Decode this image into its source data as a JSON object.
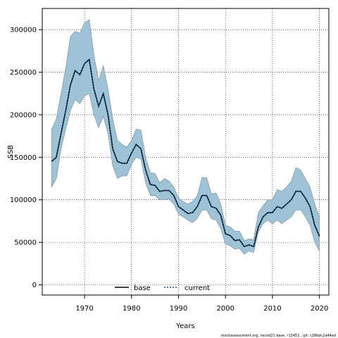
{
  "chart_data": {
    "type": "line",
    "xlabel": "Years",
    "ylabel": "SSB",
    "xlim": [
      1961,
      2022
    ],
    "ylim": [
      -12000,
      325000
    ],
    "x_ticks": [
      1970,
      1980,
      1990,
      2000,
      2010,
      2020
    ],
    "y_ticks": [
      0,
      50000,
      100000,
      150000,
      200000,
      250000,
      300000
    ],
    "grid": true,
    "legend_position": "bottom-center",
    "footer": "stockassessment.org, nscod21 base, r13452 , git: c28bdc2a44ad",
    "colors": {
      "band": "#9fc3d6",
      "band_edge": "#8a9aa5",
      "base": "#000000",
      "current": "#1a4f80"
    },
    "x": [
      1963,
      1964,
      1965,
      1966,
      1967,
      1968,
      1969,
      1970,
      1971,
      1972,
      1973,
      1974,
      1975,
      1976,
      1977,
      1978,
      1979,
      1980,
      1981,
      1982,
      1983,
      1984,
      1985,
      1986,
      1987,
      1988,
      1989,
      1990,
      1991,
      1992,
      1993,
      1994,
      1995,
      1996,
      1997,
      1998,
      1999,
      2000,
      2001,
      2002,
      2003,
      2004,
      2005,
      2006,
      2007,
      2008,
      2009,
      2010,
      2011,
      2012,
      2013,
      2014,
      2015,
      2016,
      2017,
      2018,
      2019,
      2020
    ],
    "series": [
      {
        "name": "base",
        "style": "solid",
        "values": [
          145000,
          150000,
          178000,
          205000,
          235000,
          252000,
          247000,
          260000,
          265000,
          230000,
          210000,
          225000,
          200000,
          160000,
          145000,
          143000,
          143000,
          155000,
          165000,
          160000,
          135000,
          118000,
          117000,
          110000,
          111000,
          111000,
          105000,
          92000,
          88000,
          84000,
          85000,
          92000,
          105000,
          105000,
          92000,
          90000,
          82000,
          60000,
          58000,
          52000,
          53000,
          45000,
          47000,
          45000,
          68000,
          80000,
          85000,
          85000,
          92000,
          90000,
          95000,
          100000,
          110000,
          110000,
          102000,
          92000,
          70000,
          57000
        ]
      },
      {
        "name": "current",
        "style": "dotted",
        "values": [
          145000,
          150000,
          178000,
          205000,
          235000,
          252000,
          247000,
          260000,
          265000,
          230000,
          210000,
          225000,
          200000,
          160000,
          145000,
          143000,
          143000,
          155000,
          165000,
          160000,
          135000,
          118000,
          117000,
          110000,
          111000,
          111000,
          105000,
          92000,
          88000,
          84000,
          85000,
          92000,
          105000,
          105000,
          92000,
          90000,
          82000,
          60000,
          58000,
          52000,
          53000,
          45000,
          47000,
          45000,
          68000,
          80000,
          85000,
          85000,
          92000,
          90000,
          95000,
          100000,
          110000,
          110000,
          102000,
          92000,
          70000,
          57000
        ]
      }
    ],
    "confidence_band": {
      "upper": [
        183000,
        195000,
        225000,
        255000,
        292000,
        298000,
        296000,
        308000,
        312000,
        270000,
        240000,
        258000,
        230000,
        195000,
        170000,
        165000,
        162000,
        170000,
        183000,
        182000,
        150000,
        132000,
        131000,
        120000,
        125000,
        122000,
        115000,
        102000,
        98000,
        95000,
        98000,
        105000,
        126000,
        126000,
        107000,
        108000,
        95000,
        70000,
        68000,
        63000,
        63000,
        52000,
        54000,
        53000,
        85000,
        93000,
        100000,
        100000,
        112000,
        110000,
        115000,
        122000,
        138000,
        135000,
        125000,
        115000,
        95000,
        80000
      ],
      "lower": [
        115000,
        125000,
        160000,
        183000,
        205000,
        218000,
        213000,
        222000,
        225000,
        200000,
        185000,
        198000,
        178000,
        140000,
        125000,
        128000,
        128000,
        142000,
        150000,
        148000,
        120000,
        105000,
        105000,
        100000,
        100000,
        101000,
        95000,
        83000,
        80000,
        76000,
        73000,
        78000,
        88000,
        88000,
        78000,
        76000,
        66000,
        48000,
        46000,
        42000,
        43000,
        36000,
        40000,
        38000,
        62000,
        72000,
        76000,
        72000,
        76000,
        72000,
        76000,
        80000,
        88000,
        88000,
        80000,
        70000,
        50000,
        40000
      ]
    }
  }
}
